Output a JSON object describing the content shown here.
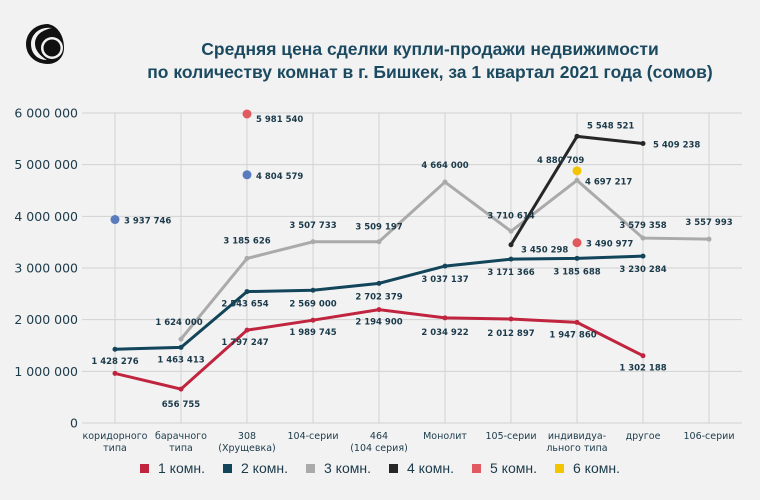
{
  "header": {
    "title_line1": "Средняя цена сделки купли-продажи недвижимости",
    "title_line2": "по количеству комнат в г. Бишкек, за 1 квартал 2021 года (сомов)"
  },
  "chart_data": {
    "type": "line",
    "title": "Средняя цена сделки купли-продажи недвижимости по количеству комнат в г. Бишкек, за 1 квартал 2021 года (сомов)",
    "xlabel": "",
    "ylabel": "",
    "ylim": [
      0,
      6000000
    ],
    "grid": true,
    "legend_position": "bottom",
    "y_ticks": [
      {
        "value": 0,
        "label": "0"
      },
      {
        "value": 1000000,
        "label": "1 000 000"
      },
      {
        "value": 2000000,
        "label": "2 000 000"
      },
      {
        "value": 3000000,
        "label": "3 000 000"
      },
      {
        "value": 4000000,
        "label": "4 000 000"
      },
      {
        "value": 5000000,
        "label": "5 000 000"
      },
      {
        "value": 6000000,
        "label": "6 000 000"
      }
    ],
    "categories": [
      [
        "коридорного",
        "типа"
      ],
      [
        "барачного",
        "типа"
      ],
      [
        "308",
        "(Хрущевка)"
      ],
      [
        "104-серии"
      ],
      [
        "464",
        "(104 серия)"
      ],
      [
        "Монолит"
      ],
      [
        "105-серии"
      ],
      [
        "индивидуа-",
        "льного типа"
      ],
      [
        "другое"
      ],
      [
        "106-серии"
      ]
    ],
    "series": [
      {
        "name": "1 комн.",
        "color": "#c0243e",
        "style": "line",
        "values": [
          960000,
          656755,
          1797247,
          1989745,
          2194900,
          2034922,
          2012897,
          1947860,
          1302188,
          null
        ],
        "labels": [
          null,
          "656 755",
          "1 797 247",
          "1 989 745",
          "2 194 900",
          "2 034 922",
          "2 012 897",
          "1 947 860",
          "1 302 188",
          null
        ]
      },
      {
        "name": "2 комн.",
        "color": "#12445a",
        "style": "line",
        "values": [
          1428276,
          1463413,
          2543654,
          2569000,
          2702379,
          3037137,
          3171366,
          3185688,
          3230284,
          null
        ],
        "labels": [
          "1 428 276",
          "1 463 413",
          "2 543 654",
          "2 569 000",
          "2 702 379",
          "3 037 137",
          "3 171 366",
          "3 185 688",
          "3 230 284",
          null
        ]
      },
      {
        "name": "3 комн.",
        "color": "#aaaaaa",
        "style": "line",
        "values": [
          null,
          1624000,
          3185626,
          3507733,
          3509197,
          4664000,
          3710614,
          4697217,
          3579358,
          3557993
        ],
        "labels": [
          null,
          "1 624 000",
          "3 185 626",
          "3 507 733",
          "3 509 197",
          "4 664 000",
          "3 710 614",
          "4 697 217",
          "3 579 358",
          "3 557 993"
        ]
      },
      {
        "name": "4 комн.",
        "color": "#262626",
        "style": "line",
        "values": [
          null,
          null,
          null,
          null,
          null,
          null,
          3450298,
          5548521,
          5409238,
          null
        ],
        "labels": [
          null,
          null,
          null,
          null,
          null,
          null,
          "3 450 298",
          "5 548 521",
          "5 409 238",
          null
        ]
      },
      {
        "name": "5 комн.",
        "color": "#e05a5f",
        "style": "point",
        "values": [
          null,
          null,
          5981540,
          null,
          null,
          null,
          null,
          3490977,
          null,
          null
        ],
        "labels": [
          null,
          null,
          "5 981 540",
          null,
          null,
          null,
          null,
          "3 490 977",
          null,
          null
        ]
      },
      {
        "name": "6 комн.",
        "color": "#f2c500",
        "style": "point",
        "values": [
          null,
          null,
          null,
          null,
          null,
          null,
          null,
          4880709,
          null,
          null
        ],
        "labels": [
          null,
          null,
          null,
          null,
          null,
          null,
          null,
          "4 880 709",
          null,
          null
        ]
      },
      {
        "name": "",
        "color": "#5b7bbf",
        "style": "point",
        "values": [
          3937746,
          null,
          4804579,
          null,
          null,
          null,
          null,
          null,
          null,
          null
        ],
        "labels": [
          "3 937 746",
          null,
          "4 804 579",
          null,
          null,
          null,
          null,
          null,
          null,
          null
        ]
      }
    ]
  }
}
